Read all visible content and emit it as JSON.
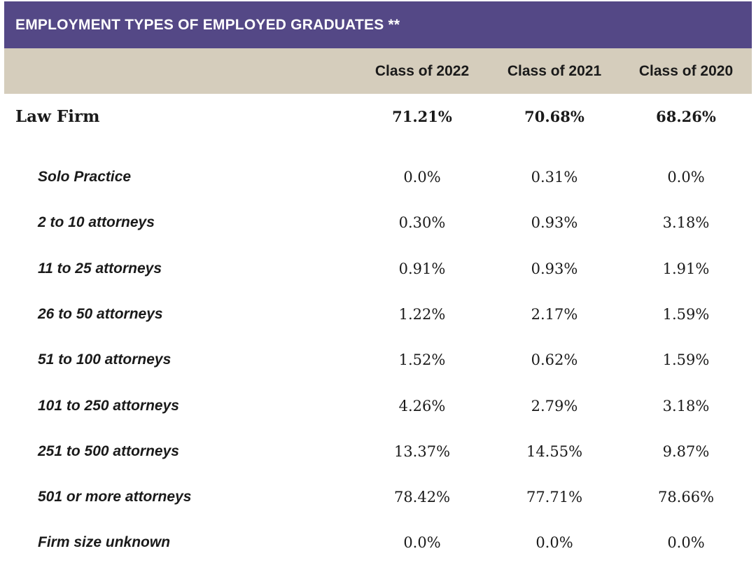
{
  "title": "EMPLOYMENT TYPES OF EMPLOYED GRADUATES **",
  "columns": [
    "Class of 2022",
    "Class of 2021",
    "Class of 2020"
  ],
  "main_row": {
    "label": "Law Firm",
    "values": [
      "71.21%",
      "70.68%",
      "68.26%"
    ]
  },
  "sub_rows": [
    {
      "label": "Solo Practice",
      "values": [
        "0.0%",
        "0.31%",
        "0.0%"
      ]
    },
    {
      "label": "2 to 10 attorneys",
      "values": [
        "0.30%",
        "0.93%",
        "3.18%"
      ]
    },
    {
      "label": "11 to 25 attorneys",
      "values": [
        "0.91%",
        "0.93%",
        "1.91%"
      ]
    },
    {
      "label": "26 to 50 attorneys",
      "values": [
        "1.22%",
        "2.17%",
        "1.59%"
      ]
    },
    {
      "label": "51 to 100 attorneys",
      "values": [
        "1.52%",
        "0.62%",
        "1.59%"
      ]
    },
    {
      "label": "101 to 250 attorneys",
      "values": [
        "4.26%",
        "2.79%",
        "3.18%"
      ]
    },
    {
      "label": "251 to 500 attorneys",
      "values": [
        "13.37%",
        "14.55%",
        "9.87%"
      ]
    },
    {
      "label": "501 or more attorneys",
      "values": [
        "78.42%",
        "77.71%",
        "78.66%"
      ]
    },
    {
      "label": "Firm size unknown",
      "values": [
        "0.0%",
        "0.0%",
        "0.0%"
      ]
    }
  ],
  "colors": {
    "title_bg": "#544886",
    "header_bg": "#d5cdbc",
    "text": "#1a1a1a"
  }
}
